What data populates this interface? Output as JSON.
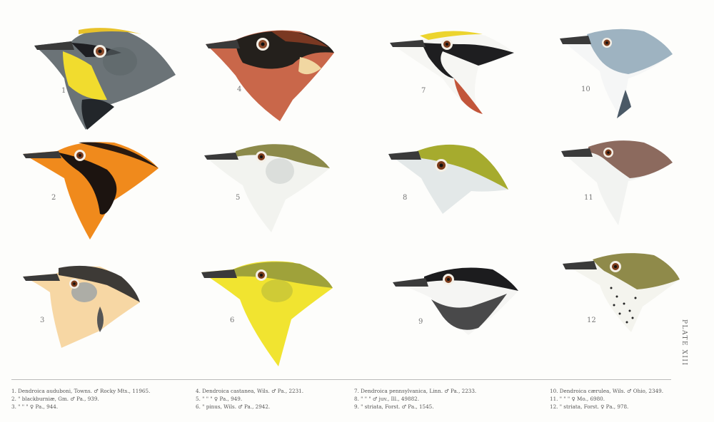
{
  "plate": {
    "title": "PLATE XIII",
    "figure_numbers": [
      "1",
      "2",
      "3",
      "4",
      "5",
      "6",
      "7",
      "8",
      "9",
      "10",
      "11",
      "12"
    ],
    "captions": [
      "1. Dendroica auduboni, Towns. ♂ Rocky Mts., 11965.",
      "2. \"  blackburniæ, Gm. ♂ Pa., 939.",
      "3. \"  \"  \" ♀ Pa., 944.",
      "4. Dendroica castanea, Wils. ♂ Pa., 2231.",
      "5. \"  \"  \" ♀ Pa., 949.",
      "6. \"  pinus, Wils. ♂ Pa., 2942.",
      "7. Dendroica pennsylvanica, Linn. ♂ Pa., 2233.",
      "8. \"  \"  \" ♂ juv., Ill., 49882.",
      "9. \"  striata, Forst. ♂ Pa., 1545.",
      "10. Dendroica cærulea, Wils. ♂ Ohio, 2349.",
      "11. \"  \"  \" ♀ Mo., 6980.",
      "12. \"  striata, Forst. ♀ Pa., 978."
    ]
  }
}
